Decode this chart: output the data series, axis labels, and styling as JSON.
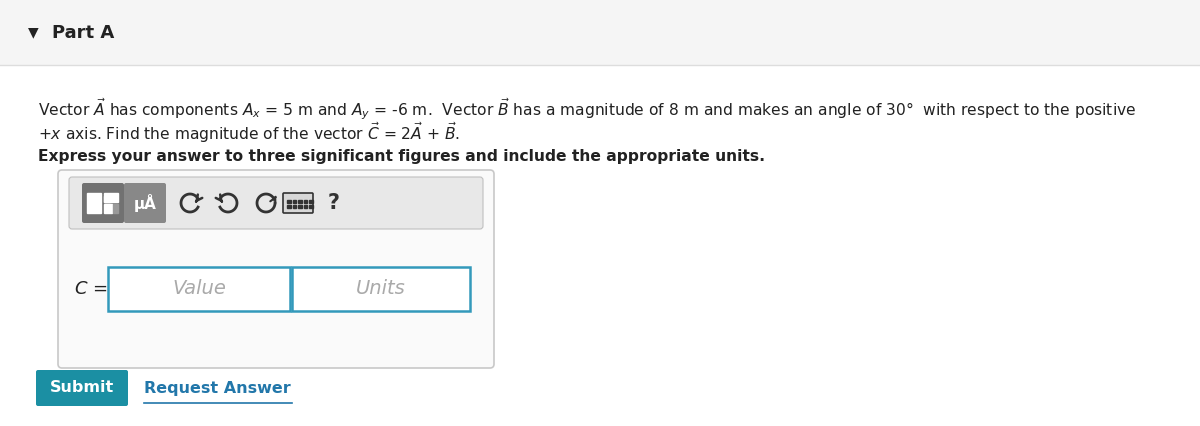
{
  "white_bg": "#ffffff",
  "header_bg": "#f5f5f5",
  "header_border": "#dddddd",
  "text_color": "#222222",
  "body_line1": "Vector $\\vec{A}$ has components $A_x$ = 5 m and $A_y$ = -6 m.  Vector $\\vec{B}$ has a magnitude of 8 m and makes an angle of 30°  with respect to the positive",
  "body_line2": "+$x$ axis. Find the magnitude of the vector $\\vec{C}$ = 2$\\vec{A}$ + $\\vec{B}$.",
  "bold_line": "Express your answer to three significant figures and include the appropriate units.",
  "toolbar_bg": "#e8e8e8",
  "toolbar_border": "#c0c0c0",
  "icon1_bg": "#717171",
  "icon2_bg": "#888888",
  "outer_box_bg": "#ffffff",
  "outer_box_border": "#c8c8c8",
  "input_border": "#3399bb",
  "placeholder_color": "#aaaaaa",
  "submit_bg": "#1b8fa3",
  "submit_text_color": "#ffffff",
  "request_color": "#2277aa",
  "icon_color": "#333333"
}
